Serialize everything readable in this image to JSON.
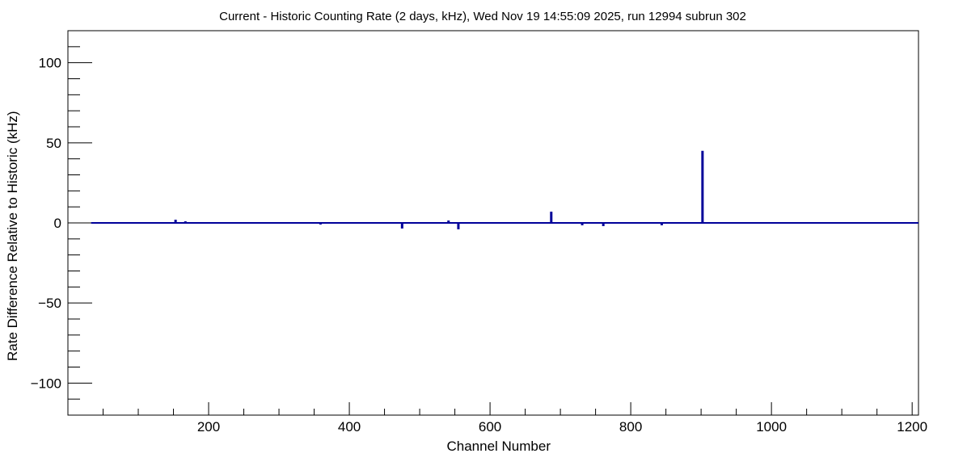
{
  "chart_data": {
    "type": "bar",
    "title": "Current - Historic Counting Rate (2 days, kHz), Wed Nov 19 14:55:09 2025, run 12994 subrun 302",
    "xlabel": "Channel Number",
    "ylabel": "Rate Difference Relative to Historic (kHz)",
    "xlim": [
      0,
      1209
    ],
    "ylim": [
      -120,
      120
    ],
    "x_major_ticks": [
      200,
      400,
      600,
      800,
      1000,
      1200
    ],
    "x_tick_labels": [
      "200",
      "400",
      "600",
      "800",
      "1000",
      "1200"
    ],
    "y_major_ticks": [
      -100,
      -50,
      0,
      50,
      100
    ],
    "y_tick_labels": [
      "−100",
      "−50",
      "0",
      "50",
      "100"
    ],
    "grid": false,
    "line_color": "#000099",
    "data_start_channel": 33,
    "points": [
      {
        "x": 46,
        "y": 0.5
      },
      {
        "x": 147,
        "y": -0.5
      },
      {
        "x": 153,
        "y": 2
      },
      {
        "x": 167,
        "y": 1
      },
      {
        "x": 354,
        "y": -0.5
      },
      {
        "x": 359,
        "y": -1
      },
      {
        "x": 429,
        "y": -0.5
      },
      {
        "x": 437,
        "y": 0.3
      },
      {
        "x": 475,
        "y": -3.5
      },
      {
        "x": 541,
        "y": 1.5
      },
      {
        "x": 543,
        "y": -0.5
      },
      {
        "x": 555,
        "y": -4
      },
      {
        "x": 587,
        "y": -0.5
      },
      {
        "x": 595,
        "y": -0.5
      },
      {
        "x": 633,
        "y": 0.5
      },
      {
        "x": 642,
        "y": -0.5
      },
      {
        "x": 687,
        "y": 7
      },
      {
        "x": 731,
        "y": -1.5
      },
      {
        "x": 761,
        "y": -2
      },
      {
        "x": 777,
        "y": 0.5
      },
      {
        "x": 793,
        "y": -0.5
      },
      {
        "x": 837,
        "y": -0.5
      },
      {
        "x": 844,
        "y": -1.5
      },
      {
        "x": 879,
        "y": 0.5
      },
      {
        "x": 895,
        "y": -0.5
      },
      {
        "x": 902,
        "y": 45
      },
      {
        "x": 1061,
        "y": 0.5
      },
      {
        "x": 1126,
        "y": 0.5
      }
    ]
  }
}
